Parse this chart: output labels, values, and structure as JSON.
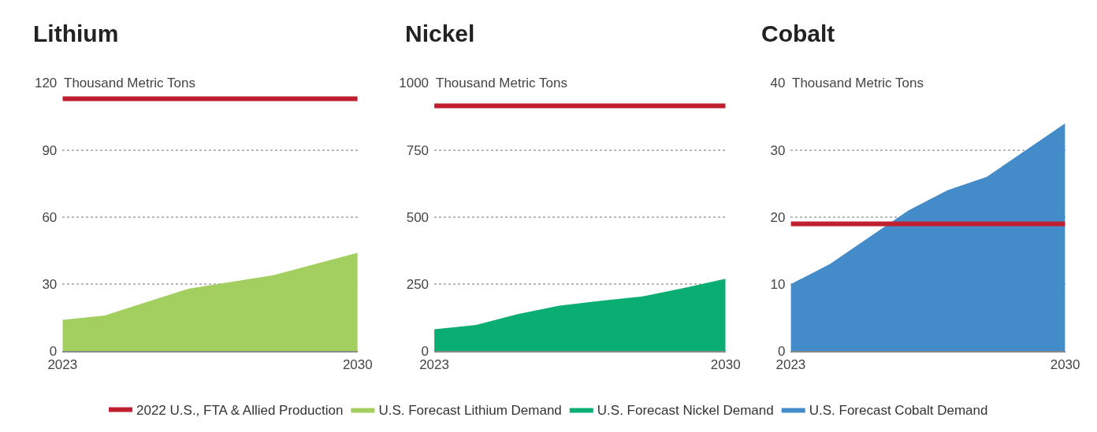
{
  "chart_data": [
    {
      "type": "area",
      "title": "Lithium",
      "ylabel": "Thousand Metric Tons",
      "x": [
        2023,
        2024,
        2025,
        2026,
        2027,
        2028,
        2029,
        2030
      ],
      "xlim": [
        2023,
        2030
      ],
      "xticks": [
        2023,
        2030
      ],
      "ylim": [
        0,
        120
      ],
      "yticks": [
        0,
        30,
        60,
        90,
        120
      ],
      "grid": "y",
      "legend": "bottom",
      "series": [
        {
          "name": "2022 U.S., FTA & Allied Production",
          "type": "line",
          "color": "#c01f2f",
          "values": [
            113,
            113,
            113,
            113,
            113,
            113,
            113,
            113
          ]
        },
        {
          "name": "U.S. Forecast Lithium Demand",
          "color": "#a2cf60",
          "values": [
            14,
            16,
            22,
            28,
            31,
            34,
            39,
            44
          ]
        }
      ]
    },
    {
      "type": "area",
      "title": "Nickel",
      "ylabel": "Thousand Metric Tons",
      "x": [
        2023,
        2024,
        2025,
        2026,
        2027,
        2028,
        2029,
        2030
      ],
      "xlim": [
        2023,
        2030
      ],
      "xticks": [
        2023,
        2030
      ],
      "ylim": [
        0,
        1000
      ],
      "yticks": [
        0,
        250,
        500,
        750,
        1000
      ],
      "grid": "y",
      "legend": "bottom",
      "series": [
        {
          "name": "2022 U.S., FTA & Allied Production",
          "type": "line",
          "color": "#c01f2f",
          "values": [
            915,
            915,
            915,
            915,
            915,
            915,
            915,
            915
          ]
        },
        {
          "name": "U.S. Forecast Nickel Demand",
          "color": "#0bae72",
          "values": [
            82,
            98,
            138,
            170,
            188,
            204,
            236,
            270
          ]
        }
      ]
    },
    {
      "type": "area",
      "title": "Cobalt",
      "ylabel": "Thousand Metric Tons",
      "x": [
        2023,
        2024,
        2025,
        2026,
        2027,
        2028,
        2029,
        2030
      ],
      "xlim": [
        2023,
        2030
      ],
      "xticks": [
        2023,
        2030
      ],
      "ylim": [
        0,
        40
      ],
      "yticks": [
        0,
        10,
        20,
        30,
        40
      ],
      "grid": "y",
      "legend": "bottom",
      "series": [
        {
          "name": "2022 U.S., FTA & Allied Production",
          "type": "line",
          "color": "#c01f2f",
          "values": [
            19,
            19,
            19,
            19,
            19,
            19,
            19,
            19
          ]
        },
        {
          "name": "U.S. Forecast Cobalt Demand",
          "color": "#448cc9",
          "values": [
            10,
            13,
            17,
            21,
            24,
            26,
            30,
            34
          ]
        }
      ]
    }
  ]
}
